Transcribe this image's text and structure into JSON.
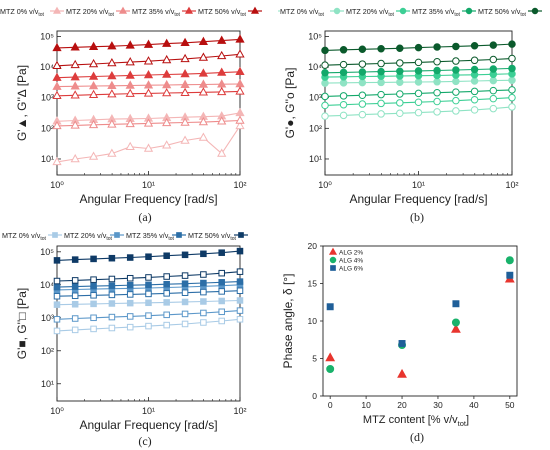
{
  "panels": [
    {
      "id": "a",
      "label": "(a)",
      "type": "line",
      "yscale": "log",
      "legend": [
        "MTZ 0% v/v",
        "MTZ 20% v/v",
        "MTZ 35% v/v",
        "MTZ 50% v/v"
      ],
      "legend_sub": "tot",
      "xlabel": "Angular Frequency [rad/s]",
      "ylabel": "G'▲, G''∆ [Pa]",
      "x_ticks": [
        "10⁰",
        "10¹",
        "10²"
      ],
      "y_ticks": [
        "10¹",
        "10²",
        "10³",
        "10⁴",
        "10⁵"
      ],
      "xlim": [
        1,
        100
      ],
      "ylim": [
        3,
        150000
      ],
      "series": [
        {
          "name": "MTZ 0% v/v",
          "modulus": "G'",
          "color": "#f4b6b6",
          "filled": true,
          "x": [
            1,
            1.58,
            2.51,
            3.98,
            6.31,
            10,
            15.8,
            25.1,
            39.8,
            63.1,
            100
          ],
          "y": [
            170,
            180,
            190,
            200,
            205,
            210,
            220,
            230,
            240,
            250,
            320
          ]
        },
        {
          "name": "MTZ 0% v/v",
          "modulus": "G''",
          "color": "#f4b6b6",
          "filled": false,
          "x": [
            1,
            1.58,
            2.51,
            3.98,
            6.31,
            10,
            15.8,
            25.1,
            39.8,
            63.1,
            100
          ],
          "y": [
            8,
            10,
            12,
            15,
            25,
            22,
            28,
            40,
            50,
            15,
            120
          ]
        },
        {
          "name": "MTZ 20% v/v",
          "modulus": "G'",
          "color": "#ee8c8c",
          "filled": true,
          "x": [
            1,
            1.58,
            2.51,
            3.98,
            6.31,
            10,
            15.8,
            25.1,
            39.8,
            63.1,
            100
          ],
          "y": [
            2300,
            2350,
            2400,
            2450,
            2500,
            2550,
            2600,
            2650,
            2700,
            2750,
            2800
          ]
        },
        {
          "name": "MTZ 20% v/v",
          "modulus": "G''",
          "color": "#ee8c8c",
          "filled": false,
          "x": [
            1,
            1.58,
            2.51,
            3.98,
            6.31,
            10,
            15.8,
            25.1,
            39.8,
            63.1,
            100
          ],
          "y": [
            120,
            125,
            130,
            135,
            140,
            145,
            150,
            155,
            160,
            170,
            180
          ]
        },
        {
          "name": "MTZ 35% v/v",
          "modulus": "G'",
          "color": "#dd3c3c",
          "filled": true,
          "x": [
            1,
            1.58,
            2.51,
            3.98,
            6.31,
            10,
            15.8,
            25.1,
            39.8,
            63.1,
            100
          ],
          "y": [
            4500,
            4700,
            4900,
            5100,
            5300,
            5500,
            5700,
            5900,
            6200,
            6600,
            7000
          ]
        },
        {
          "name": "MTZ 35% v/v",
          "modulus": "G''",
          "color": "#dd3c3c",
          "filled": false,
          "x": [
            1,
            1.58,
            2.51,
            3.98,
            6.31,
            10,
            15.8,
            25.1,
            39.8,
            63.1,
            100
          ],
          "y": [
            1150,
            1200,
            1250,
            1300,
            1350,
            1380,
            1420,
            1450,
            1500,
            1550,
            1600
          ]
        },
        {
          "name": "MTZ 50% v/v",
          "modulus": "G'",
          "color": "#b80f0f",
          "filled": true,
          "x": [
            1,
            1.58,
            2.51,
            3.98,
            6.31,
            10,
            15.8,
            25.1,
            39.8,
            63.1,
            100
          ],
          "y": [
            42000,
            44000,
            46000,
            48000,
            51000,
            54000,
            58000,
            62000,
            67000,
            73000,
            80000
          ]
        },
        {
          "name": "MTZ 50% v/v",
          "modulus": "G''",
          "color": "#b80f0f",
          "filled": false,
          "x": [
            1,
            1.58,
            2.51,
            3.98,
            6.31,
            10,
            15.8,
            25.1,
            39.8,
            63.1,
            100
          ],
          "y": [
            11000,
            11800,
            12600,
            13500,
            14500,
            15500,
            17000,
            18500,
            20500,
            23000,
            26000
          ]
        }
      ]
    },
    {
      "id": "b",
      "label": "(b)",
      "type": "line",
      "yscale": "log",
      "legend": [
        "MTZ 0% v/v",
        "MTZ 20% v/v",
        "MTZ 35% v/v",
        "MTZ 50% v/v"
      ],
      "legend_sub": "tot",
      "xlabel": "Angular Frequency [rad/s]",
      "ylabel": "G'●, G''o [Pa]",
      "x_ticks": [
        "10⁰",
        "10¹",
        "10²"
      ],
      "y_ticks": [
        "10¹",
        "10²",
        "10³",
        "10⁴",
        "10⁵"
      ],
      "xlim": [
        1,
        100
      ],
      "ylim": [
        3,
        150000
      ],
      "series": [
        {
          "name": "MTZ 0% v/v",
          "modulus": "G'",
          "color": "#8fe3c4",
          "filled": true,
          "x": [
            1,
            1.58,
            2.51,
            3.98,
            6.31,
            10,
            15.8,
            25.1,
            39.8,
            63.1,
            100
          ],
          "y": [
            3000,
            3050,
            3100,
            3150,
            3200,
            3250,
            3300,
            3400,
            3500,
            3600,
            3700
          ]
        },
        {
          "name": "MTZ 0% v/v",
          "modulus": "G''",
          "color": "#8fe3c4",
          "filled": false,
          "x": [
            1,
            1.58,
            2.51,
            3.98,
            6.31,
            10,
            15.8,
            25.1,
            39.8,
            63.1,
            100
          ],
          "y": [
            250,
            265,
            280,
            295,
            310,
            325,
            345,
            370,
            400,
            440,
            500
          ]
        },
        {
          "name": "MTZ 20% v/v",
          "modulus": "G'",
          "color": "#3ccf95",
          "filled": true,
          "x": [
            1,
            1.58,
            2.51,
            3.98,
            6.31,
            10,
            15.8,
            25.1,
            39.8,
            63.1,
            100
          ],
          "y": [
            4700,
            4800,
            4900,
            5000,
            5100,
            5200,
            5300,
            5450,
            5600,
            5800,
            6000
          ]
        },
        {
          "name": "MTZ 20% v/v",
          "modulus": "G''",
          "color": "#3ccf95",
          "filled": false,
          "x": [
            1,
            1.58,
            2.51,
            3.98,
            6.31,
            10,
            15.8,
            25.1,
            39.8,
            63.1,
            100
          ],
          "y": [
            560,
            590,
            620,
            650,
            680,
            710,
            750,
            800,
            860,
            930,
            1000
          ]
        },
        {
          "name": "MTZ 35% v/v",
          "modulus": "G'",
          "color": "#13a86a",
          "filled": true,
          "x": [
            1,
            1.58,
            2.51,
            3.98,
            6.31,
            10,
            15.8,
            25.1,
            39.8,
            63.1,
            100
          ],
          "y": [
            6500,
            6700,
            6900,
            7100,
            7300,
            7500,
            7700,
            8000,
            8300,
            8600,
            9000
          ]
        },
        {
          "name": "MTZ 35% v/v",
          "modulus": "G''",
          "color": "#13a86a",
          "filled": false,
          "x": [
            1,
            1.58,
            2.51,
            3.98,
            6.31,
            10,
            15.8,
            25.1,
            39.8,
            63.1,
            100
          ],
          "y": [
            1100,
            1150,
            1200,
            1260,
            1320,
            1380,
            1450,
            1520,
            1600,
            1700,
            1800
          ]
        },
        {
          "name": "MTZ 50% v/v",
          "modulus": "G'",
          "color": "#0b5a2c",
          "filled": true,
          "x": [
            1,
            1.58,
            2.51,
            3.98,
            6.31,
            10,
            15.8,
            25.1,
            39.8,
            63.1,
            100
          ],
          "y": [
            35000,
            36500,
            38000,
            39500,
            41000,
            43000,
            45000,
            47000,
            49500,
            52000,
            56000
          ]
        },
        {
          "name": "MTZ 50% v/v",
          "modulus": "G''",
          "color": "#0b5a2c",
          "filled": false,
          "x": [
            1,
            1.58,
            2.51,
            3.98,
            6.31,
            10,
            15.8,
            25.1,
            39.8,
            63.1,
            100
          ],
          "y": [
            11500,
            12000,
            12500,
            13000,
            13600,
            14200,
            14900,
            15700,
            16600,
            17600,
            19000
          ]
        }
      ]
    },
    {
      "id": "c",
      "label": "(c)",
      "type": "line",
      "yscale": "log",
      "legend": [
        "MTZ 0% v/v",
        "MTZ 20% v/v",
        "MTZ 35% v/v",
        "MTZ 50% v/v"
      ],
      "legend_sub": "tot",
      "xlabel": "Angular Frequency [rad/s]",
      "ylabel": "G'■, G''□ [Pa]",
      "x_ticks": [
        "10⁰",
        "10¹",
        "10²"
      ],
      "y_ticks": [
        "10¹",
        "10²",
        "10³",
        "10⁴",
        "10⁵"
      ],
      "xlim": [
        1,
        100
      ],
      "ylim": [
        3,
        150000
      ],
      "series": [
        {
          "name": "MTZ 0% v/v",
          "modulus": "G'",
          "color": "#a9cbe6",
          "filled": true,
          "x": [
            1,
            1.58,
            2.51,
            3.98,
            6.31,
            10,
            15.8,
            25.1,
            39.8,
            63.1,
            100
          ],
          "y": [
            2500,
            2570,
            2640,
            2710,
            2780,
            2850,
            2930,
            3020,
            3120,
            3230,
            3350
          ]
        },
        {
          "name": "MTZ 0% v/v",
          "modulus": "G''",
          "color": "#a9cbe6",
          "filled": false,
          "x": [
            1,
            1.58,
            2.51,
            3.98,
            6.31,
            10,
            15.8,
            25.1,
            39.8,
            63.1,
            100
          ],
          "y": [
            400,
            430,
            460,
            490,
            520,
            560,
            600,
            650,
            720,
            800,
            900
          ]
        },
        {
          "name": "MTZ 20% v/v",
          "modulus": "G'",
          "color": "#5b97c9",
          "filled": true,
          "x": [
            1,
            1.58,
            2.51,
            3.98,
            6.31,
            10,
            15.8,
            25.1,
            39.8,
            63.1,
            100
          ],
          "y": [
            7000,
            7200,
            7400,
            7600,
            7800,
            8000,
            8300,
            8600,
            9000,
            9400,
            10000
          ]
        },
        {
          "name": "MTZ 20% v/v",
          "modulus": "G''",
          "color": "#5b97c9",
          "filled": false,
          "x": [
            1,
            1.58,
            2.51,
            3.98,
            6.31,
            10,
            15.8,
            25.1,
            39.8,
            63.1,
            100
          ],
          "y": [
            900,
            950,
            1000,
            1050,
            1100,
            1160,
            1230,
            1310,
            1400,
            1520,
            1650
          ]
        },
        {
          "name": "MTZ 35% v/v",
          "modulus": "G'",
          "color": "#2c6ea7",
          "filled": true,
          "x": [
            1,
            1.58,
            2.51,
            3.98,
            6.31,
            10,
            15.8,
            25.1,
            39.8,
            63.1,
            100
          ],
          "y": [
            8500,
            8800,
            9100,
            9400,
            9700,
            10000,
            10400,
            10800,
            11300,
            11900,
            12500
          ]
        },
        {
          "name": "MTZ 35% v/v",
          "modulus": "G''",
          "color": "#2c6ea7",
          "filled": false,
          "x": [
            1,
            1.58,
            2.51,
            3.98,
            6.31,
            10,
            15.8,
            25.1,
            39.8,
            63.1,
            100
          ],
          "y": [
            4500,
            4650,
            4800,
            4950,
            5100,
            5300,
            5500,
            5750,
            6000,
            6300,
            6600
          ]
        },
        {
          "name": "MTZ 50% v/v",
          "modulus": "G'",
          "color": "#0e3a66",
          "filled": true,
          "x": [
            1,
            1.58,
            2.51,
            3.98,
            6.31,
            10,
            15.8,
            25.1,
            39.8,
            63.1,
            100
          ],
          "y": [
            55000,
            58000,
            61000,
            64000,
            67000,
            71000,
            76000,
            81000,
            87000,
            94000,
            105000
          ]
        },
        {
          "name": "MTZ 50% v/v",
          "modulus": "G''",
          "color": "#0e3a66",
          "filled": false,
          "x": [
            1,
            1.58,
            2.51,
            3.98,
            6.31,
            10,
            15.8,
            25.1,
            39.8,
            63.1,
            100
          ],
          "y": [
            13000,
            13600,
            14300,
            15000,
            15800,
            16700,
            17800,
            19000,
            20500,
            22500,
            25000
          ]
        }
      ]
    },
    {
      "id": "d",
      "label": "(d)",
      "type": "scatter",
      "yscale": "linear",
      "xlabel": "MTZ content [% v/v",
      "xlabel_sub": "tot",
      "xlabel_end": "]",
      "ylabel": "Phase angle, δ [°]",
      "x_ticks": [
        "0",
        "10",
        "20",
        "30",
        "40",
        "50"
      ],
      "y_ticks": [
        "0",
        "5",
        "10",
        "15",
        "20"
      ],
      "xlim": [
        -2,
        52
      ],
      "ylim": [
        0,
        20
      ],
      "series": [
        {
          "name": "ALG 2%",
          "marker": "triangle",
          "color": "#e8352e",
          "x": [
            0,
            20,
            35,
            50
          ],
          "y": [
            5.1,
            2.9,
            8.9,
            15.6
          ]
        },
        {
          "name": "ALG 4%",
          "marker": "circle",
          "color": "#19b26b",
          "x": [
            0,
            20,
            35,
            50
          ],
          "y": [
            3.6,
            6.8,
            9.8,
            18.1
          ]
        },
        {
          "name": "ALG 6%",
          "marker": "square",
          "color": "#1f5f99",
          "x": [
            0,
            20,
            35,
            50
          ],
          "y": [
            11.9,
            7.0,
            12.3,
            16.1
          ]
        }
      ]
    }
  ],
  "chart_data": [
    {
      "type": "line",
      "panel": "a",
      "yscale": "log",
      "xlabel": "Angular Frequency [rad/s]",
      "ylabel": "G'▲, G''∆ [Pa]",
      "xlim": [
        1,
        100
      ],
      "ylim": [
        3,
        150000
      ],
      "legend": [
        "MTZ 0% v/vtot",
        "MTZ 20% v/vtot",
        "MTZ 35% v/vtot",
        "MTZ 50% v/vtot"
      ]
    },
    {
      "type": "line",
      "panel": "b",
      "yscale": "log",
      "xlabel": "Angular Frequency [rad/s]",
      "ylabel": "G'●, G''o [Pa]",
      "xlim": [
        1,
        100
      ],
      "ylim": [
        3,
        150000
      ],
      "legend": [
        "MTZ 0% v/vtot",
        "MTZ 20% v/vtot",
        "MTZ 35% v/vtot",
        "MTZ 50% v/vtot"
      ]
    },
    {
      "type": "line",
      "panel": "c",
      "yscale": "log",
      "xlabel": "Angular Frequency [rad/s]",
      "ylabel": "G'■, G''□ [Pa]",
      "xlim": [
        1,
        100
      ],
      "ylim": [
        3,
        150000
      ],
      "legend": [
        "MTZ 0% v/vtot",
        "MTZ 20% v/vtot",
        "MTZ 35% v/vtot",
        "MTZ 50% v/vtot"
      ]
    },
    {
      "type": "scatter",
      "panel": "d",
      "xlabel": "MTZ content [% v/vtot]",
      "ylabel": "Phase angle, δ [°]",
      "xlim": [
        -2,
        52
      ],
      "ylim": [
        0,
        20
      ],
      "series": [
        {
          "name": "ALG 2%",
          "x": [
            0,
            20,
            35,
            50
          ],
          "y": [
            5.1,
            2.9,
            8.9,
            15.6
          ]
        },
        {
          "name": "ALG 4%",
          "x": [
            0,
            20,
            35,
            50
          ],
          "y": [
            3.6,
            6.8,
            9.8,
            18.1
          ]
        },
        {
          "name": "ALG 6%",
          "x": [
            0,
            20,
            35,
            50
          ],
          "y": [
            11.9,
            7.0,
            12.3,
            16.1
          ]
        }
      ]
    }
  ]
}
